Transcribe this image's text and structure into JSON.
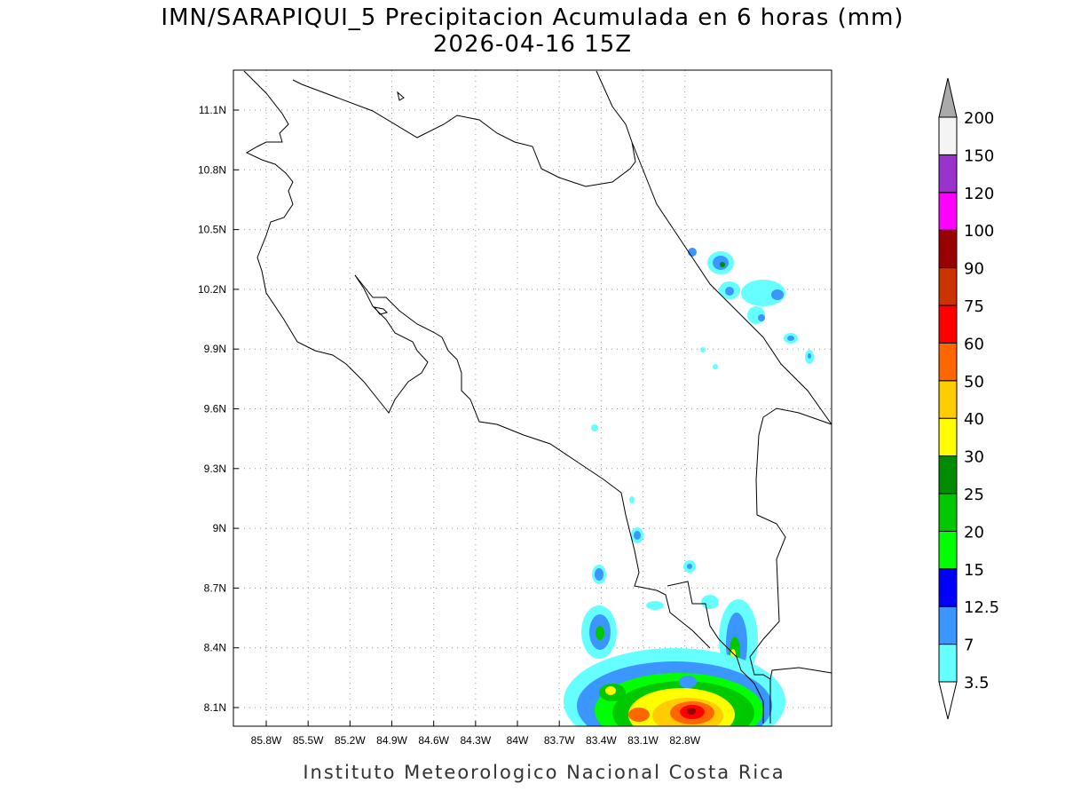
{
  "map": {
    "title": "IMN/SARAPIQUI_5 Precipitacion Acumulada en 6 horas (mm)",
    "subtitle": "2026-04-16 15Z",
    "lat_ticks": [
      "11.1N",
      "10.8N",
      "10.5N",
      "10.2N",
      "9.9N",
      "9.6N",
      "9.3N",
      "9N",
      "8.7N",
      "8.4N",
      "8.1N"
    ],
    "lon_ticks": [
      "85.8W",
      "85.5W",
      "85.2W",
      "84.9W",
      "84.6W",
      "84.3W",
      "84W",
      "83.7W",
      "83.4W",
      "83.1W",
      "82.8W"
    ],
    "colorbar": {
      "levels": [
        3.5,
        7,
        12.5,
        15,
        20,
        25,
        30,
        40,
        50,
        60,
        75,
        90,
        100,
        120,
        150,
        200
      ],
      "colors": [
        "#66ffff",
        "#3c96ff",
        "#0000ff",
        "#00ff00",
        "#00c800",
        "#008c00",
        "#ffff00",
        "#ffcc00",
        "#ff6600",
        "#ff0000",
        "#cc3300",
        "#990000",
        "#ff00ff",
        "#9933cc",
        "#f4f4f4"
      ],
      "under_color": "#ffffff",
      "over_color": "#aaaaaa"
    },
    "footer": "Instituto Meteorologico Nacional Costa Rica"
  }
}
